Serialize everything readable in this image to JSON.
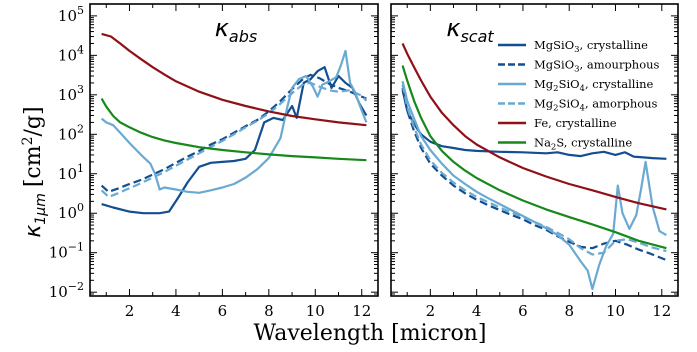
{
  "figure": {
    "xlabel": "Wavelength [micron]",
    "ylabel": "κ1μm [cm²/g]",
    "ylabel_main": "κ",
    "ylabel_sub": "1μm",
    "ylabel_unit": "[cm",
    "ylabel_unit_sup": "2",
    "ylabel_unit_tail": "/g]"
  },
  "colors": {
    "mgsio3_cryst": "#124f91",
    "mgsio3_amorph": "#124f91",
    "mg2sio4_cryst": "#6aa9d2",
    "mg2sio4_amorph": "#6aa9d2",
    "fe_cryst": "#8f1117",
    "na2s_cryst": "#17891a"
  },
  "chart_data": [
    {
      "type": "line",
      "title": "κabs",
      "title_main": "κ",
      "title_sub": "abs",
      "xlim": [
        0.3,
        12.7
      ],
      "ylim": [
        0.008,
        200000
      ],
      "yscale": "log",
      "xticks": [
        2,
        4,
        6,
        8,
        10,
        12
      ],
      "xtick_labels": [
        "2",
        "4",
        "6",
        "8",
        "10",
        "12"
      ],
      "yticks": [
        0.01,
        0.1,
        1,
        10,
        100,
        1000,
        10000,
        100000
      ],
      "ytick_labels": [
        "10",
        "10",
        "10",
        "10",
        "10",
        "10",
        "10",
        "10"
      ],
      "ytick_exps": [
        "−2",
        "−1",
        "0",
        "1",
        "2",
        "3",
        "4",
        "5"
      ],
      "grid": false,
      "series": [
        {
          "key": "mgsio3_cryst",
          "dash": "solid",
          "x": [
            0.8,
            1.3,
            2.0,
            2.6,
            3.3,
            3.7,
            4.1,
            4.5,
            5.0,
            5.5,
            6.0,
            6.5,
            7.0,
            7.4,
            7.8,
            8.2,
            8.6,
            9.0,
            9.2,
            9.5,
            9.8,
            10.1,
            10.4,
            10.7,
            11.0,
            11.3,
            11.6,
            11.9,
            12.2
          ],
          "y": [
            1.7,
            1.4,
            1.1,
            1.0,
            1.0,
            1.1,
            2.5,
            6,
            15,
            19,
            20,
            21,
            24,
            40,
            200,
            260,
            230,
            520,
            260,
            2000,
            2500,
            4000,
            5000,
            1500,
            3000,
            2000,
            1500,
            600,
            300
          ]
        },
        {
          "key": "mgsio3_amorph",
          "dash": "dashed",
          "x": [
            0.8,
            1.1,
            1.5,
            2.0,
            2.5,
            3.0,
            3.5,
            4.0,
            4.5,
            5.0,
            5.5,
            6.0,
            6.5,
            7.0,
            7.5,
            8.0,
            8.5,
            9.0,
            9.5,
            9.8,
            10.2,
            10.6,
            11.0,
            11.5,
            12.0,
            12.2
          ],
          "y": [
            5,
            3.5,
            4.2,
            5.5,
            7,
            9.5,
            13,
            19,
            27,
            38,
            55,
            75,
            110,
            160,
            230,
            380,
            700,
            1400,
            2600,
            3200,
            2600,
            1900,
            1500,
            1200,
            900,
            800
          ]
        },
        {
          "key": "mg2sio4_cryst",
          "dash": "solid",
          "x": [
            0.8,
            1.0,
            1.3,
            1.6,
            2.0,
            2.5,
            2.9,
            3.1,
            3.3,
            3.5,
            4.0,
            4.5,
            5.0,
            5.5,
            6.0,
            6.5,
            7.0,
            7.5,
            8.0,
            8.5,
            8.8,
            9.0,
            9.3,
            9.6,
            9.9,
            10.1,
            10.3,
            10.6,
            10.9,
            11.1,
            11.3,
            11.5,
            11.7,
            12.0,
            12.2
          ],
          "y": [
            250,
            200,
            170,
            110,
            60,
            30,
            18,
            10,
            4,
            4.5,
            4,
            3.5,
            3.3,
            3.8,
            4.5,
            5.5,
            8,
            13,
            25,
            80,
            500,
            1500,
            2500,
            3000,
            1600,
            900,
            1800,
            2200,
            2800,
            5500,
            13000,
            2000,
            1200,
            400,
            200
          ]
        },
        {
          "key": "mg2sio4_amorph",
          "dash": "dashed",
          "x": [
            0.8,
            1.1,
            1.5,
            2.0,
            2.5,
            3.0,
            3.5,
            4.0,
            4.5,
            5.0,
            5.5,
            6.0,
            6.5,
            7.0,
            7.5,
            8.0,
            8.5,
            9.0,
            9.5,
            9.8,
            10.2,
            10.6,
            11.0,
            11.5,
            12.0,
            12.2
          ],
          "y": [
            3.8,
            2.6,
            3.2,
            4.3,
            5.8,
            8,
            11,
            16,
            23,
            33,
            48,
            68,
            100,
            150,
            220,
            340,
            600,
            1100,
            1900,
            2000,
            1600,
            1300,
            1200,
            1300,
            950,
            700
          ]
        },
        {
          "key": "fe_cryst",
          "dash": "solid",
          "x": [
            0.8,
            1.2,
            1.6,
            2.0,
            2.5,
            3.0,
            3.5,
            4.0,
            5.0,
            6.0,
            7.0,
            8.0,
            9.0,
            10.0,
            11.0,
            12.2
          ],
          "y": [
            35000,
            30000,
            20000,
            13000,
            8000,
            5000,
            3300,
            2200,
            1200,
            750,
            520,
            380,
            290,
            240,
            200,
            170
          ]
        },
        {
          "key": "na2s_cryst",
          "dash": "solid",
          "x": [
            0.8,
            1.0,
            1.3,
            1.6,
            2.0,
            2.5,
            3.0,
            3.5,
            4.0,
            5.0,
            6.0,
            7.0,
            8.0,
            9.0,
            10.0,
            11.0,
            12.2
          ],
          "y": [
            800,
            500,
            290,
            200,
            150,
            110,
            85,
            70,
            60,
            47,
            40,
            35,
            31,
            28,
            26,
            24,
            22
          ]
        }
      ]
    },
    {
      "type": "line",
      "title": "κscat",
      "title_main": "κ",
      "title_sub": "scat",
      "xlim": [
        0.3,
        12.7
      ],
      "ylim": [
        0.008,
        200000
      ],
      "yscale": "log",
      "xticks": [
        2,
        4,
        6,
        8,
        10,
        12
      ],
      "xtick_labels": [
        "2",
        "4",
        "6",
        "8",
        "10",
        "12"
      ],
      "yticks": [
        0.01,
        0.1,
        1,
        10,
        100,
        1000,
        10000,
        100000
      ],
      "grid": false,
      "legend": {
        "placement": "top-right",
        "entries": [
          {
            "key": "mgsio3_cryst",
            "dash": "solid",
            "label": [
              "MgSiO",
              "3",
              ", crystalline"
            ]
          },
          {
            "key": "mgsio3_amorph",
            "dash": "dashed",
            "label": [
              "MgSiO",
              "3",
              ", amourphous"
            ]
          },
          {
            "key": "mg2sio4_cryst",
            "dash": "solid",
            "label": [
              "Mg",
              "2",
              "SiO",
              "4",
              ", crystalline"
            ]
          },
          {
            "key": "mg2sio4_amorph",
            "dash": "dashed",
            "label": [
              "Mg",
              "2",
              "SiO",
              "4",
              ", amorphous"
            ]
          },
          {
            "key": "fe_cryst",
            "dash": "solid",
            "label": [
              "Fe, crystalline"
            ]
          },
          {
            "key": "na2s_cryst",
            "dash": "solid",
            "label": [
              "Na",
              "2",
              "S, crystalline"
            ]
          }
        ]
      },
      "series": [
        {
          "key": "mgsio3_cryst",
          "dash": "solid",
          "x": [
            0.8,
            1.0,
            1.3,
            1.6,
            2.0,
            2.5,
            3.0,
            3.5,
            4.0,
            5.0,
            6.0,
            7.0,
            7.5,
            8.0,
            8.5,
            9.0,
            9.5,
            10.0,
            10.4,
            10.8,
            11.2,
            11.6,
            12.2
          ],
          "y": [
            1300,
            400,
            180,
            100,
            65,
            50,
            45,
            40,
            38,
            36,
            35,
            33,
            35,
            30,
            28,
            33,
            36,
            30,
            35,
            27,
            26,
            25,
            24
          ]
        },
        {
          "key": "mgsio3_amorph",
          "dash": "dashed",
          "x": [
            0.8,
            1.0,
            1.3,
            1.6,
            2.0,
            2.5,
            3.0,
            3.5,
            4.0,
            4.5,
            5.0,
            5.5,
            6.0,
            6.5,
            7.0,
            7.5,
            8.0,
            8.5,
            9.0,
            9.5,
            10.0,
            10.5,
            11.0,
            11.5,
            12.2
          ],
          "y": [
            1500,
            400,
            120,
            45,
            18,
            9,
            5,
            3.2,
            2.2,
            1.6,
            1.2,
            0.9,
            0.7,
            0.5,
            0.38,
            0.26,
            0.19,
            0.14,
            0.13,
            0.17,
            0.2,
            0.16,
            0.12,
            0.095,
            0.065
          ]
        },
        {
          "key": "mg2sio4_cryst",
          "dash": "solid",
          "x": [
            0.8,
            1.0,
            1.3,
            1.6,
            2.0,
            2.5,
            3.0,
            3.5,
            4.0,
            4.5,
            5.0,
            5.5,
            6.0,
            6.5,
            7.0,
            7.5,
            8.0,
            8.5,
            8.8,
            9.0,
            9.3,
            9.6,
            9.9,
            10.1,
            10.3,
            10.6,
            10.9,
            11.1,
            11.3,
            11.6,
            11.9,
            12.2
          ],
          "y": [
            2200,
            700,
            250,
            90,
            40,
            18,
            9,
            5.5,
            3.5,
            2.4,
            1.7,
            1.2,
            0.85,
            0.6,
            0.42,
            0.28,
            0.16,
            0.06,
            0.035,
            0.012,
            0.05,
            0.15,
            0.3,
            5,
            1.0,
            0.4,
            0.9,
            4,
            20,
            1.5,
            0.35,
            0.28
          ]
        },
        {
          "key": "mg2sio4_amorph",
          "dash": "dashed",
          "x": [
            0.8,
            1.0,
            1.3,
            1.6,
            2.0,
            2.5,
            3.0,
            3.5,
            4.0,
            4.5,
            5.0,
            5.5,
            6.0,
            6.5,
            7.0,
            7.5,
            8.0,
            8.5,
            9.0,
            9.5,
            10.0,
            10.5,
            11.0,
            11.5,
            12.2
          ],
          "y": [
            1800,
            500,
            150,
            55,
            22,
            10.5,
            6,
            3.8,
            2.6,
            1.9,
            1.4,
            1.05,
            0.8,
            0.6,
            0.45,
            0.32,
            0.22,
            0.13,
            0.09,
            0.1,
            0.2,
            0.22,
            0.18,
            0.14,
            0.11
          ]
        },
        {
          "key": "fe_cryst",
          "dash": "solid",
          "x": [
            0.8,
            1.0,
            1.3,
            1.6,
            2.0,
            2.5,
            3.0,
            3.5,
            4.0,
            5.0,
            6.0,
            7.0,
            8.0,
            9.0,
            10.0,
            11.0,
            12.2
          ],
          "y": [
            20000,
            11000,
            5000,
            2300,
            900,
            350,
            170,
            90,
            55,
            26,
            14,
            8.5,
            5.5,
            3.8,
            2.6,
            1.8,
            1.25
          ]
        },
        {
          "key": "na2s_cryst",
          "dash": "solid",
          "x": [
            0.8,
            1.0,
            1.3,
            1.6,
            2.0,
            2.5,
            3.0,
            3.5,
            4.0,
            5.0,
            6.0,
            7.0,
            8.0,
            9.0,
            10.0,
            11.0,
            12.2
          ],
          "y": [
            5500,
            2300,
            700,
            260,
            90,
            38,
            20,
            12,
            7.8,
            3.8,
            2.1,
            1.25,
            0.8,
            0.52,
            0.33,
            0.2,
            0.13
          ]
        }
      ]
    }
  ]
}
